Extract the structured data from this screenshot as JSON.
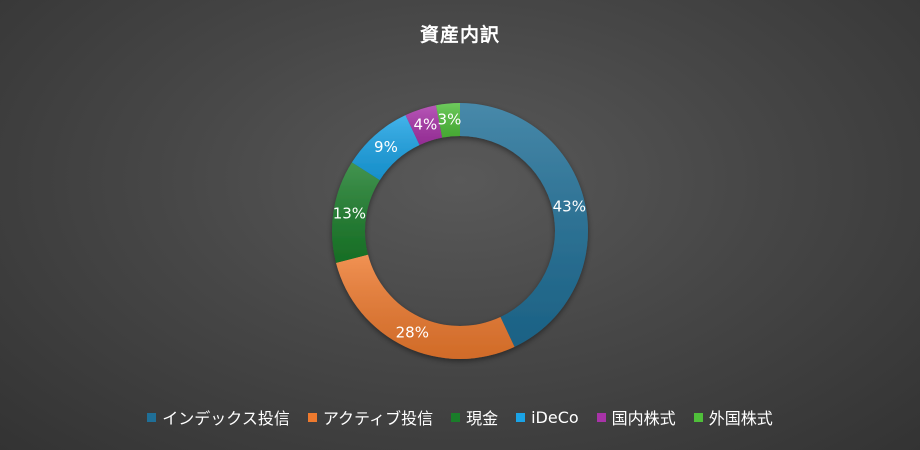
{
  "chart_data": {
    "type": "pie",
    "title": "資産内訳",
    "legend_position": "bottom",
    "categories": [
      "インデックス投信",
      "アクティブ投信",
      "現金",
      "iDeCo",
      "国内株式",
      "外国株式"
    ],
    "values": [
      43,
      28,
      13,
      9,
      4,
      3
    ],
    "labels": [
      "43%",
      "28%",
      "13%",
      "9%",
      "4%",
      "3%"
    ],
    "unit": "%",
    "colors": [
      "#1f6f97",
      "#ee7a2e",
      "#1a7d2a",
      "#1aa3e6",
      "#a833a8",
      "#4fbf3a"
    ],
    "style": "doughnut"
  }
}
